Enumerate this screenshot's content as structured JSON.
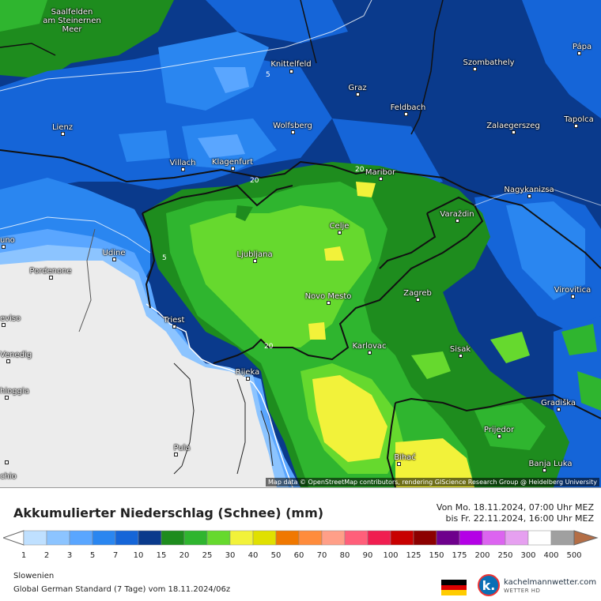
{
  "map": {
    "region_labels": [
      {
        "name": "Saalfelden\nam Steinernen\nMeer"
      },
      {
        "name": "Knittelfeld"
      },
      {
        "name": "Szombathely"
      },
      {
        "name": "Pápa"
      },
      {
        "name": "Graz"
      },
      {
        "name": "Feldbach"
      },
      {
        "name": "Tapolca"
      },
      {
        "name": "Lienz"
      },
      {
        "name": "Wolfsberg"
      },
      {
        "name": "Zalaegerszeg"
      },
      {
        "name": "Villach"
      },
      {
        "name": "Klagenfurt"
      },
      {
        "name": "Maribor"
      },
      {
        "name": "Nagykanizsa"
      },
      {
        "name": "Varaždin"
      },
      {
        "name": "Celje"
      },
      {
        "name": "uno"
      },
      {
        "name": "Udine"
      },
      {
        "name": "Ljubljana"
      },
      {
        "name": "Pordenone"
      },
      {
        "name": "Zagreb"
      },
      {
        "name": "Virovitica"
      },
      {
        "name": "Novo Mesto"
      },
      {
        "name": "eviso"
      },
      {
        "name": "Triest"
      },
      {
        "name": "Sisak"
      },
      {
        "name": "Karlovac"
      },
      {
        "name": "Venedig"
      },
      {
        "name": "Rijeka"
      },
      {
        "name": "hioggia"
      },
      {
        "name": "Gradiška"
      },
      {
        "name": "Prijedor"
      },
      {
        "name": "Pula"
      },
      {
        "name": "Bihać"
      },
      {
        "name": "Banja Luka"
      },
      {
        "name": "chio"
      }
    ],
    "contour_labels": [
      "5",
      "20",
      "20",
      "5",
      "20"
    ],
    "attribution": "Map data © OpenStreetMap contributors, rendering GIScience Research Group @ Heidelberg University"
  },
  "legend": {
    "title": "Akkumulierter Niederschlag (Schnee) (mm)",
    "period_from": "Von Mo. 18.11.2024, 07:00 Uhr MEZ",
    "period_to": "bis Fr. 22.11.2024, 16:00 Uhr MEZ",
    "ticks": [
      "1",
      "2",
      "3",
      "5",
      "7",
      "10",
      "15",
      "20",
      "25",
      "30",
      "40",
      "50",
      "60",
      "70",
      "80",
      "90",
      "100",
      "125",
      "150",
      "175",
      "200",
      "250",
      "300",
      "400",
      "500"
    ],
    "colors": [
      "#bfe0ff",
      "#8cc4ff",
      "#5aa6ff",
      "#2a86f0",
      "#1565d8",
      "#0a3a8c",
      "#1e8c1e",
      "#2fb52f",
      "#66d92e",
      "#f2f23a",
      "#e0e000",
      "#f07800",
      "#ff8c3c",
      "#ff9f88",
      "#ff5f7a",
      "#f01e50",
      "#c80000",
      "#8c0000",
      "#6e008c",
      "#b400e6",
      "#dc64f0",
      "#e6a0f0",
      "#ffffff",
      "#a0a0a0",
      "#b46e46"
    ],
    "region": "Slowenien",
    "model": "Global German Standard (7 Tage) vom  18.11.2024/06z",
    "brand": "kachelmannwetter.com",
    "brand_sub": "WETTER HD",
    "logo_letter": "k."
  }
}
